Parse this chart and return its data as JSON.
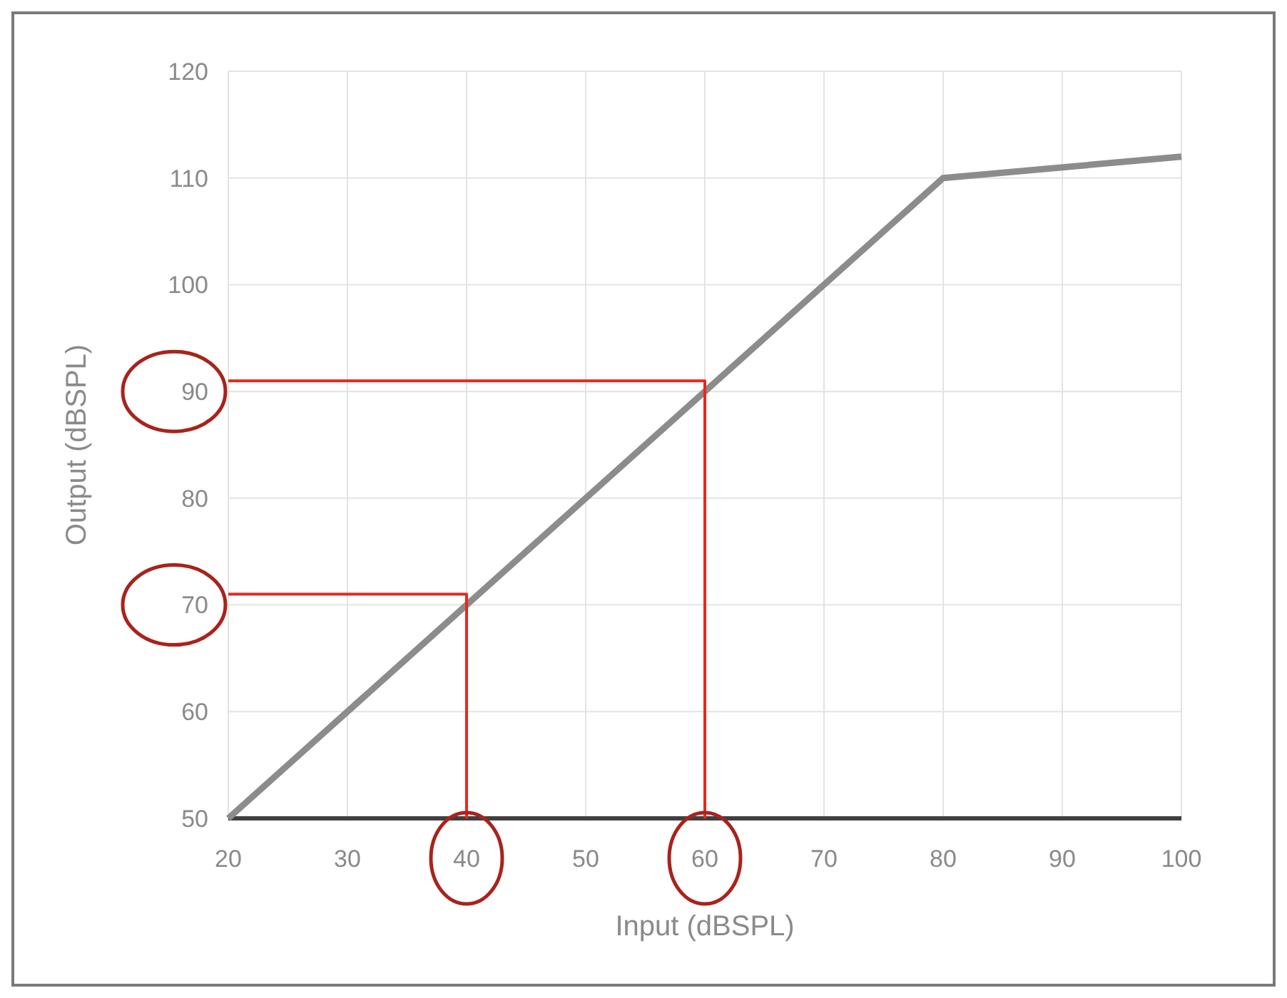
{
  "chart_data": {
    "type": "line",
    "xlabel": "Input (dBSPL)",
    "ylabel": "Output (dBSPL)",
    "x": [
      20,
      80,
      100
    ],
    "series": [
      {
        "color": "#8c8c8c",
        "values": [
          50,
          110,
          112
        ]
      },
      {
        "color": "#e8281e",
        "x": [
          20,
          60,
          60
        ],
        "values": [
          91,
          91,
          50
        ]
      },
      {
        "color": "#e8281e",
        "x": [
          20,
          40,
          40
        ],
        "values": [
          71,
          71,
          50
        ]
      }
    ],
    "xlim": [
      20,
      100
    ],
    "xticks": [
      20,
      30,
      40,
      50,
      60,
      70,
      80,
      90,
      100
    ],
    "ylim": [
      50,
      120
    ],
    "yticks": [
      50,
      60,
      70,
      80,
      90,
      100,
      110,
      120
    ],
    "grid": true,
    "marker": "none",
    "line_style": "solid"
  }
}
